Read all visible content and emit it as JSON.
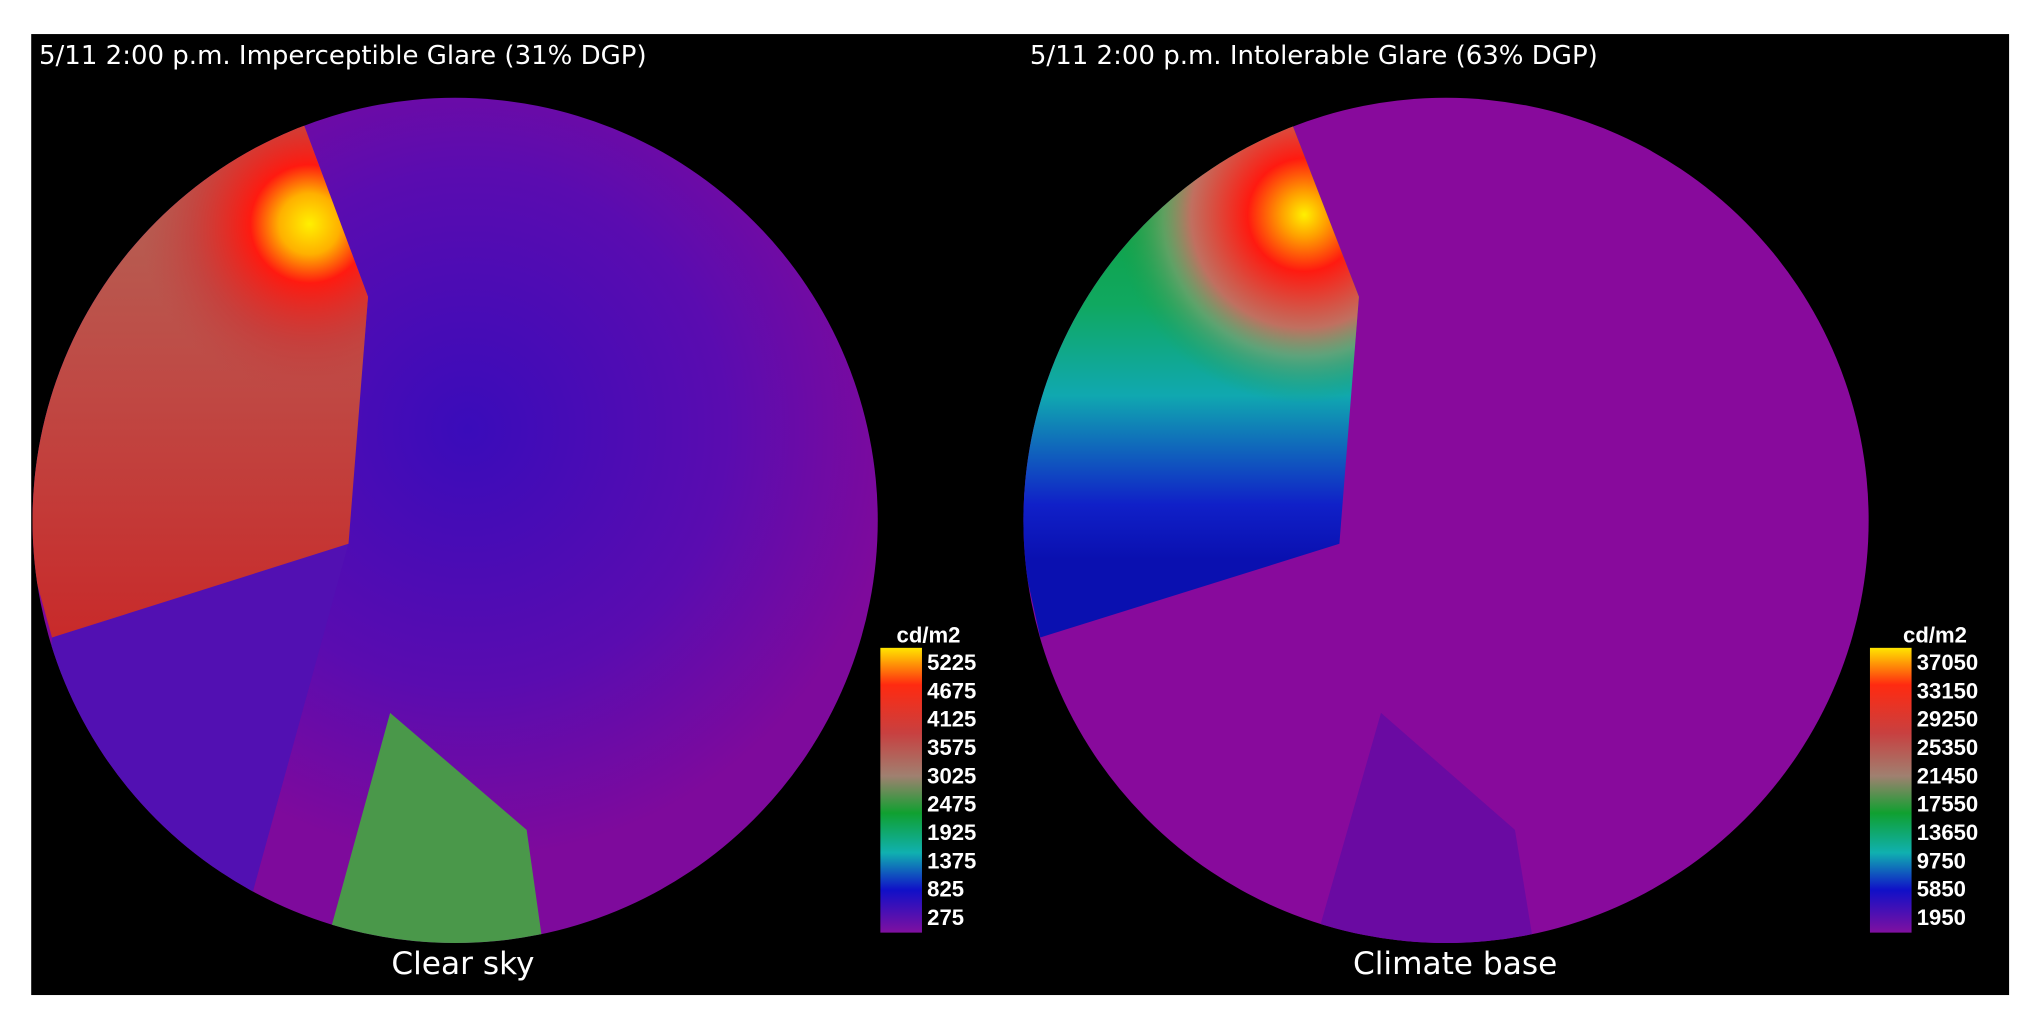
{
  "panels": [
    {
      "title": "5/11  2:00 p.m.  Imperceptible Glare (31% DGP)",
      "caption": "Clear sky",
      "legend": {
        "unit": "cd/m2",
        "labels": [
          "5225",
          "4675",
          "4125",
          "3575",
          "3025",
          "2475",
          "1925",
          "1375",
          "825",
          "275"
        ]
      }
    },
    {
      "title": "5/11  2:00 p.m.  Intolerable Glare (63% DGP)",
      "caption": "Climate base",
      "legend": {
        "unit": "cd/m2",
        "labels": [
          "37050",
          "33150",
          "29250",
          "25350",
          "21450",
          "17550",
          "13650",
          "9750",
          "5850",
          "1950"
        ]
      }
    }
  ]
}
